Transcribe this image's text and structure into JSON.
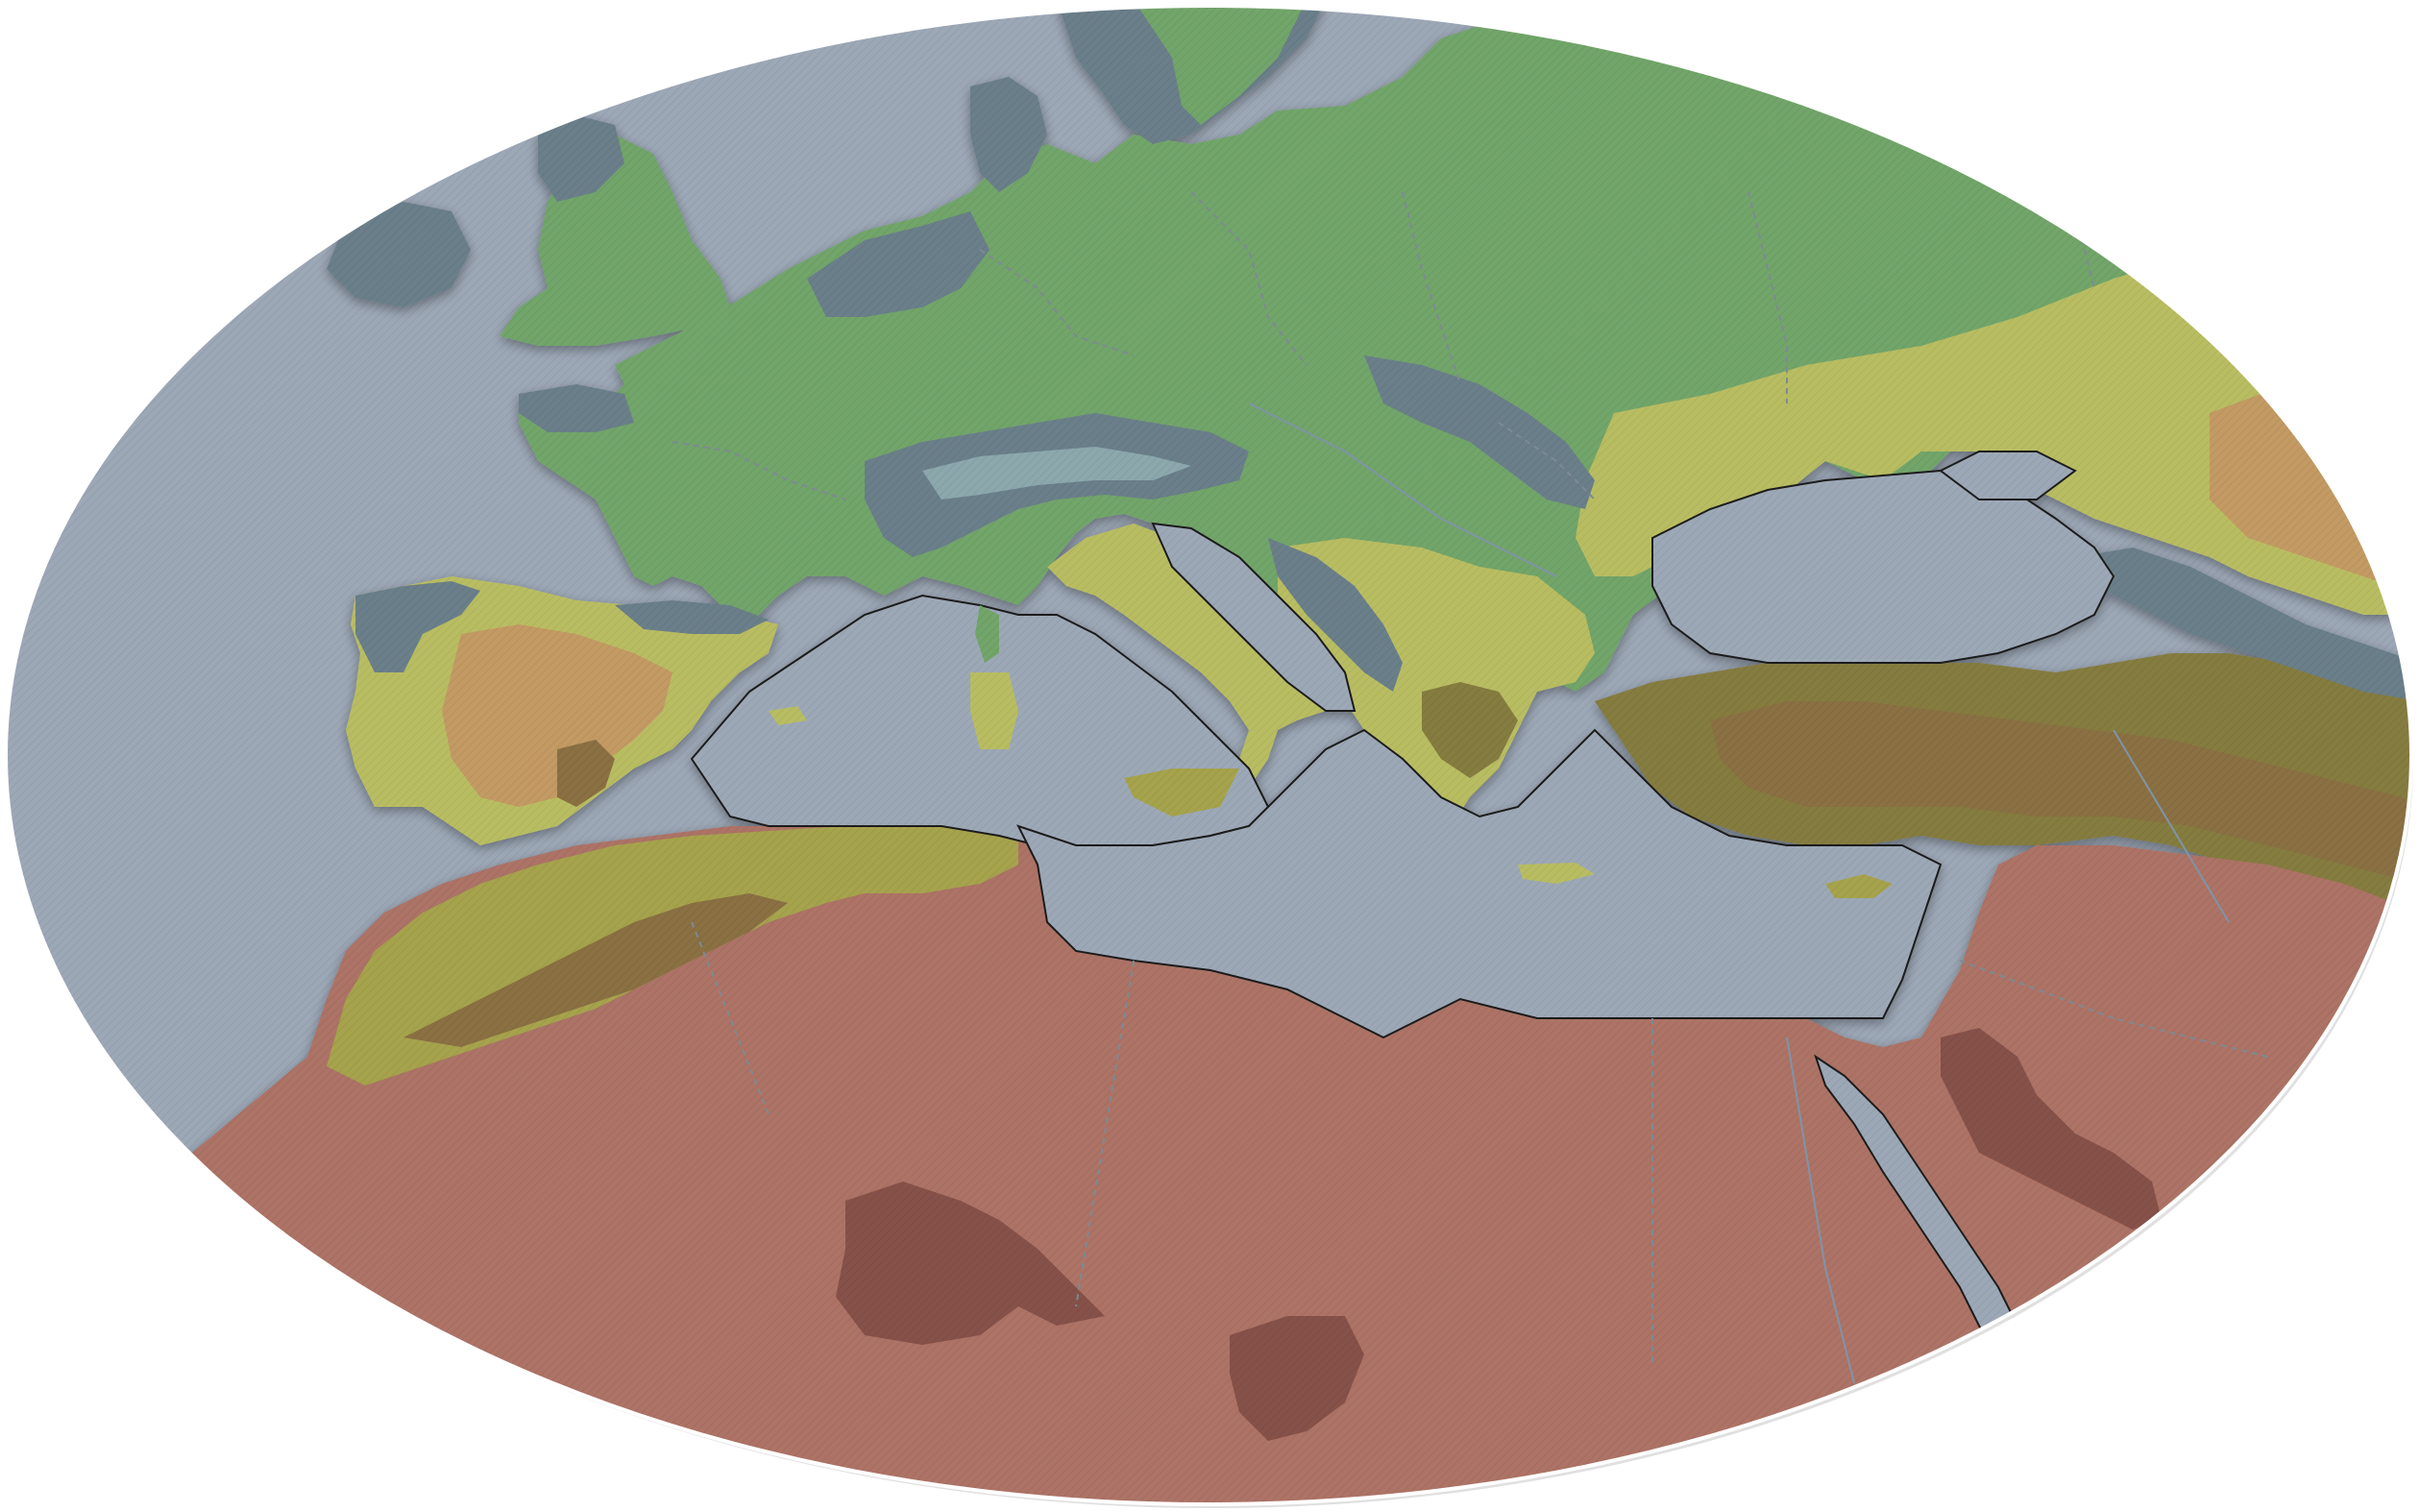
{
  "map": {
    "type": "physical-climate-map",
    "projection": "oval",
    "labels": [],
    "colors": {
      "background": "#ffffff",
      "sea": "#9da8b7",
      "coast_line": "#1e1e1e",
      "border_line": "#7d8a93",
      "river_line": "#7f94a8",
      "zone_alpine": "#6a7f8a",
      "zone_ice_blue": "#8ca8ad",
      "zone_green": "#72a56b",
      "zone_green_dark": "#5f8a5a",
      "zone_olive_light": "#b9bd62",
      "zone_olive": "#a6a34e",
      "zone_steppe_tan": "#c39a63",
      "zone_olive_dark": "#857c3f",
      "zone_brown": "#8a6f42",
      "zone_desert": "#ad7366",
      "zone_desert_dark": "#865149"
    },
    "icons": [
      "no-icons"
    ]
  }
}
